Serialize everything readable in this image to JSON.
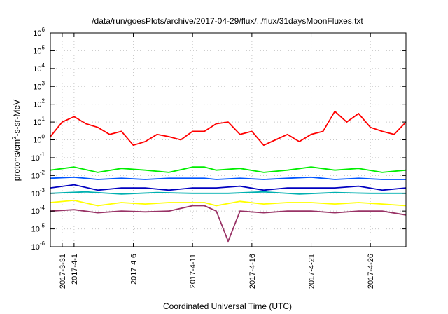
{
  "chart_data": {
    "type": "line",
    "title": "/data/run/goesPlots/archive/2017-04-29/flux/../flux/31daysMoonFluxes.txt",
    "xlabel": "Coordinated Universal Time (UTC)",
    "ylabel": "protons/cm2-s-sr-MeV",
    "ylabel_parts": [
      "protons/cm",
      "2",
      "-s-sr-MeV"
    ],
    "y_scale": "log",
    "ylim": [
      1e-06,
      1000000.0
    ],
    "y_ticks": [
      {
        "base": "10",
        "exp": "-6",
        "value": 1e-06
      },
      {
        "base": "10",
        "exp": "-5",
        "value": 1e-05
      },
      {
        "base": "10",
        "exp": "-4",
        "value": 0.0001
      },
      {
        "base": "10",
        "exp": "-3",
        "value": 0.001
      },
      {
        "base": "10",
        "exp": "-2",
        "value": 0.01
      },
      {
        "base": "10",
        "exp": "-1",
        "value": 0.1
      },
      {
        "base": "10",
        "exp": "0",
        "value": 1
      },
      {
        "base": "10",
        "exp": "1",
        "value": 10
      },
      {
        "base": "10",
        "exp": "2",
        "value": 100
      },
      {
        "base": "10",
        "exp": "3",
        "value": 1000.0
      },
      {
        "base": "10",
        "exp": "4",
        "value": 10000.0
      },
      {
        "base": "10",
        "exp": "5",
        "value": 100000.0
      },
      {
        "base": "10",
        "exp": "6",
        "value": 1000000.0
      }
    ],
    "xlim": [
      "2017-03-30",
      "2017-04-29"
    ],
    "x_ticks": [
      "2017-3-31",
      "2017-4-1",
      "2017-4-6",
      "2017-4-11",
      "2017-4-16",
      "2017-4-21",
      "2017-4-26"
    ],
    "grid": true,
    "legend": "none",
    "series": [
      {
        "color": "#ff0000",
        "x": [
          "2017-03-30",
          "2017-03-31",
          "2017-04-01",
          "2017-04-02",
          "2017-04-03",
          "2017-04-04",
          "2017-04-05",
          "2017-04-06",
          "2017-04-07",
          "2017-04-08",
          "2017-04-09",
          "2017-04-10",
          "2017-04-11",
          "2017-04-12",
          "2017-04-13",
          "2017-04-14",
          "2017-04-15",
          "2017-04-16",
          "2017-04-17",
          "2017-04-18",
          "2017-04-19",
          "2017-04-20",
          "2017-04-21",
          "2017-04-22",
          "2017-04-23",
          "2017-04-24",
          "2017-04-25",
          "2017-04-26",
          "2017-04-27",
          "2017-04-28",
          "2017-04-29"
        ],
        "y": [
          1.5,
          10,
          20,
          8,
          5,
          2,
          3,
          0.5,
          0.8,
          2,
          1.5,
          1,
          3,
          3,
          8,
          10,
          2,
          3,
          0.5,
          1,
          2,
          0.8,
          2,
          3,
          40,
          10,
          30,
          5,
          3,
          2,
          10
        ]
      },
      {
        "color": "#00ee00",
        "x": [
          "2017-03-30",
          "2017-04-01",
          "2017-04-03",
          "2017-04-05",
          "2017-04-07",
          "2017-04-09",
          "2017-04-11",
          "2017-04-12",
          "2017-04-13",
          "2017-04-15",
          "2017-04-17",
          "2017-04-19",
          "2017-04-21",
          "2017-04-23",
          "2017-04-25",
          "2017-04-27",
          "2017-04-29"
        ],
        "y": [
          0.02,
          0.03,
          0.015,
          0.025,
          0.02,
          0.015,
          0.03,
          0.03,
          0.02,
          0.025,
          0.015,
          0.02,
          0.03,
          0.02,
          0.025,
          0.015,
          0.02
        ]
      },
      {
        "color": "#0055ff",
        "x": [
          "2017-03-30",
          "2017-04-01",
          "2017-04-03",
          "2017-04-05",
          "2017-04-07",
          "2017-04-09",
          "2017-04-11",
          "2017-04-12",
          "2017-04-13",
          "2017-04-15",
          "2017-04-17",
          "2017-04-19",
          "2017-04-21",
          "2017-04-23",
          "2017-04-25",
          "2017-04-27",
          "2017-04-29"
        ],
        "y": [
          0.007,
          0.008,
          0.006,
          0.007,
          0.006,
          0.007,
          0.007,
          0.007,
          0.006,
          0.007,
          0.006,
          0.007,
          0.008,
          0.006,
          0.007,
          0.006,
          0.006
        ]
      },
      {
        "color": "#0000c0",
        "x": [
          "2017-03-30",
          "2017-04-01",
          "2017-04-03",
          "2017-04-05",
          "2017-04-07",
          "2017-04-09",
          "2017-04-11",
          "2017-04-12",
          "2017-04-13",
          "2017-04-15",
          "2017-04-17",
          "2017-04-19",
          "2017-04-21",
          "2017-04-23",
          "2017-04-25",
          "2017-04-27",
          "2017-04-29"
        ],
        "y": [
          0.002,
          0.003,
          0.0015,
          0.002,
          0.002,
          0.0015,
          0.002,
          0.002,
          0.002,
          0.0025,
          0.0015,
          0.002,
          0.002,
          0.002,
          0.0025,
          0.0015,
          0.002
        ]
      },
      {
        "color": "#00b0b0",
        "x": [
          "2017-03-30",
          "2017-04-02",
          "2017-04-05",
          "2017-04-08",
          "2017-04-11",
          "2017-04-14",
          "2017-04-17",
          "2017-04-20",
          "2017-04-23",
          "2017-04-26",
          "2017-04-29"
        ],
        "y": [
          0.001,
          0.0012,
          0.0009,
          0.0011,
          0.001,
          0.001,
          0.0012,
          0.0009,
          0.0011,
          0.001,
          0.001
        ]
      },
      {
        "color": "#ffff00",
        "x": [
          "2017-03-30",
          "2017-04-01",
          "2017-04-03",
          "2017-04-05",
          "2017-04-07",
          "2017-04-09",
          "2017-04-11",
          "2017-04-12",
          "2017-04-13",
          "2017-04-15",
          "2017-04-17",
          "2017-04-19",
          "2017-04-21",
          "2017-04-23",
          "2017-04-25",
          "2017-04-27",
          "2017-04-29"
        ],
        "y": [
          0.0003,
          0.0004,
          0.0002,
          0.0003,
          0.00025,
          0.0003,
          0.0003,
          0.0003,
          0.0002,
          0.00035,
          0.00025,
          0.0003,
          0.0003,
          0.00025,
          0.0003,
          0.00025,
          0.0002
        ]
      },
      {
        "color": "#993366",
        "x": [
          "2017-03-30",
          "2017-04-01",
          "2017-04-03",
          "2017-04-05",
          "2017-04-07",
          "2017-04-09",
          "2017-04-11",
          "2017-04-12",
          "2017-04-13",
          "2017-04-14",
          "2017-04-15",
          "2017-04-17",
          "2017-04-19",
          "2017-04-21",
          "2017-04-23",
          "2017-04-25",
          "2017-04-27",
          "2017-04-29"
        ],
        "y": [
          0.0001,
          0.00012,
          8e-05,
          0.0001,
          9e-05,
          0.0001,
          0.0002,
          0.0002,
          0.0001,
          2e-06,
          0.0001,
          8e-05,
          0.0001,
          0.0001,
          8e-05,
          0.0001,
          0.0001,
          6e-05
        ]
      }
    ]
  }
}
